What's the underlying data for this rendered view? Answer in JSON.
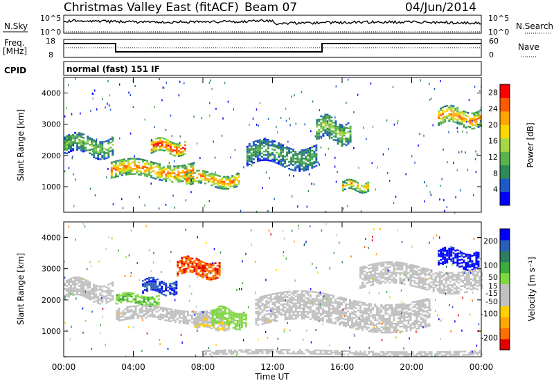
{
  "header": {
    "station": "Christmas Valley East (fitACF)",
    "beam": "Beam 07",
    "date": "04/Jun/2014"
  },
  "status_panels": {
    "nsky_label": "N.Sky",
    "nsky_ticks": [
      "10^5",
      "10^0"
    ],
    "nsearch_label": "N.Search",
    "nsearch_ticks": [
      "10^5",
      "10^0"
    ],
    "freq_label": [
      "Freq.",
      "[MHz]"
    ],
    "freq_ticks": [
      "18",
      "8"
    ],
    "nave_label": "Nave",
    "nave_ticks": [
      "60",
      "0"
    ],
    "cpid_label": "CPID",
    "cpid_text": "normal (fast) 151 IF"
  },
  "colors": {
    "power_scale": [
      "#0000ff",
      "#1f58c8",
      "#2e8b57",
      "#59b34c",
      "#a6d845",
      "#ffd700",
      "#ffa500",
      "#ff5a00",
      "#ff0000"
    ],
    "velocity_scale": [
      "#e00000",
      "#ff7000",
      "#ffa800",
      "#ffd000",
      "#c0c0c0",
      "#c0c0c0",
      "#80d840",
      "#3caa3c",
      "#2e7d62",
      "#2a5fb8",
      "#0000ff"
    ]
  },
  "chart_data": [
    {
      "type": "heatmap",
      "name": "power",
      "xlabel": "",
      "ylabel": "Slant Range [km]",
      "x_range_hours": [
        0,
        24
      ],
      "ylim_km": [
        180,
        4500
      ],
      "y_ticks": [
        "4000",
        "3000",
        "2000",
        "1000"
      ],
      "colorbar": {
        "label": "Power [dB]",
        "ticks": [
          "28",
          "24",
          "20",
          "16",
          "12",
          "8",
          "4"
        ],
        "range": [
          0,
          30
        ]
      },
      "regions": [
        {
          "from_h": 0.0,
          "to_h": 2.8,
          "center_km": 2300,
          "width_km": 600,
          "level_db": 12
        },
        {
          "from_h": 2.7,
          "to_h": 7.5,
          "center_km": 1500,
          "width_km": 500,
          "level_db": 22
        },
        {
          "from_h": 5.0,
          "to_h": 7.0,
          "center_km": 2250,
          "width_km": 400,
          "level_db": 27
        },
        {
          "from_h": 7.0,
          "to_h": 10.0,
          "center_km": 1200,
          "width_km": 400,
          "level_db": 22
        },
        {
          "from_h": 10.5,
          "to_h": 14.5,
          "center_km": 2000,
          "width_km": 700,
          "level_db": 10
        },
        {
          "from_h": 14.5,
          "to_h": 16.5,
          "center_km": 2800,
          "width_km": 700,
          "level_db": 14
        },
        {
          "from_h": 16.0,
          "to_h": 17.5,
          "center_km": 1000,
          "width_km": 300,
          "level_db": 20
        },
        {
          "from_h": 21.5,
          "to_h": 24.0,
          "center_km": 3200,
          "width_km": 500,
          "level_db": 22
        }
      ]
    },
    {
      "type": "heatmap",
      "name": "velocity",
      "xlabel": "Time UT",
      "ylabel": "Slant Range [km]",
      "x_ticks": [
        "00:00",
        "04:00",
        "08:00",
        "12:00",
        "16:00",
        "20:00",
        "00:00"
      ],
      "x_range_hours": [
        0,
        24
      ],
      "ylim_km": [
        180,
        4500
      ],
      "y_ticks": [
        "4000",
        "3000",
        "2000",
        "1000"
      ],
      "colorbar": {
        "label": "Velocity [m s⁻¹]",
        "ticks": [
          "200",
          "100",
          "50",
          "15",
          "-15",
          "-50",
          "-100",
          "-200"
        ],
        "range": [
          -250,
          250
        ]
      },
      "regions": [
        {
          "from_h": 0.0,
          "to_h": 2.8,
          "center_km": 2300,
          "width_km": 600,
          "level": 0
        },
        {
          "from_h": 3.0,
          "to_h": 5.5,
          "center_km": 2000,
          "width_km": 300,
          "level": 60
        },
        {
          "from_h": 4.5,
          "to_h": 6.5,
          "center_km": 2400,
          "width_km": 400,
          "level": 200
        },
        {
          "from_h": 6.5,
          "to_h": 9.0,
          "center_km": 3000,
          "width_km": 500,
          "level": -200
        },
        {
          "from_h": 3.0,
          "to_h": 9.0,
          "center_km": 1500,
          "width_km": 400,
          "level": 0
        },
        {
          "from_h": 7.5,
          "to_h": 9.5,
          "center_km": 1200,
          "width_km": 300,
          "level": -60
        },
        {
          "from_h": 8.5,
          "to_h": 10.5,
          "center_km": 1400,
          "width_km": 500,
          "level": 40
        },
        {
          "from_h": 11.0,
          "to_h": 21.0,
          "center_km": 1600,
          "width_km": 900,
          "level": 0
        },
        {
          "from_h": 8.0,
          "to_h": 24.0,
          "center_km": 300,
          "width_km": 150,
          "level": -40
        },
        {
          "from_h": 21.5,
          "to_h": 23.8,
          "center_km": 3300,
          "width_km": 500,
          "level": 220
        },
        {
          "from_h": 17.0,
          "to_h": 24.0,
          "center_km": 2700,
          "width_km": 700,
          "level": 0
        }
      ]
    }
  ]
}
